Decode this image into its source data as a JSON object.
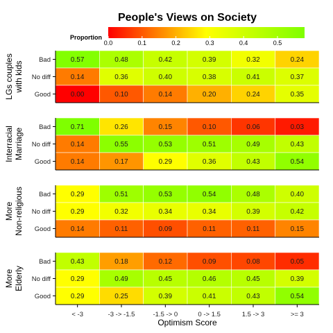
{
  "chart_data": {
    "type": "heatmap",
    "title": "People's Views on Society",
    "xlabel": "Optimism Score",
    "x_categories": [
      "< -3",
      "-3 -> -1.5",
      "-1.5 -> 0",
      "0 -> 1.5",
      "1.5 -> 3",
      ">= 3"
    ],
    "row_labels": [
      "Bad",
      "No diff",
      "Good"
    ],
    "legend": {
      "title": "Proportion",
      "ticks": [
        "0.0",
        "0.1",
        "0.2",
        "0.3",
        "0.4",
        "0.5"
      ],
      "range": [
        0,
        0.58
      ],
      "colors": [
        "#ff0000",
        "#ffff00",
        "#7fff00"
      ]
    },
    "panels": [
      {
        "label": [
          "LGs couples",
          "with kids"
        ],
        "values": [
          [
            0.57,
            0.48,
            0.42,
            0.39,
            0.32,
            0.24
          ],
          [
            0.14,
            0.36,
            0.4,
            0.38,
            0.41,
            0.37
          ],
          [
            0.0,
            0.1,
            0.14,
            0.2,
            0.24,
            0.35
          ]
        ]
      },
      {
        "label": [
          "Interracial",
          "Marriage"
        ],
        "values": [
          [
            0.71,
            0.26,
            0.15,
            0.1,
            0.06,
            0.03
          ],
          [
            0.14,
            0.55,
            0.53,
            0.51,
            0.49,
            0.43
          ],
          [
            0.14,
            0.17,
            0.29,
            0.36,
            0.43,
            0.54
          ]
        ]
      },
      {
        "label": [
          "More",
          "Non-religious"
        ],
        "values": [
          [
            0.29,
            0.51,
            0.53,
            0.54,
            0.48,
            0.4
          ],
          [
            0.29,
            0.32,
            0.34,
            0.34,
            0.39,
            0.42
          ],
          [
            0.14,
            0.11,
            0.09,
            0.11,
            0.11,
            0.15
          ]
        ]
      },
      {
        "label": [
          "More",
          "Elderly"
        ],
        "values": [
          [
            0.43,
            0.18,
            0.12,
            0.09,
            0.08,
            0.05
          ],
          [
            0.29,
            0.49,
            0.45,
            0.46,
            0.45,
            0.39
          ],
          [
            0.29,
            0.25,
            0.39,
            0.41,
            0.43,
            0.54
          ]
        ]
      }
    ]
  }
}
